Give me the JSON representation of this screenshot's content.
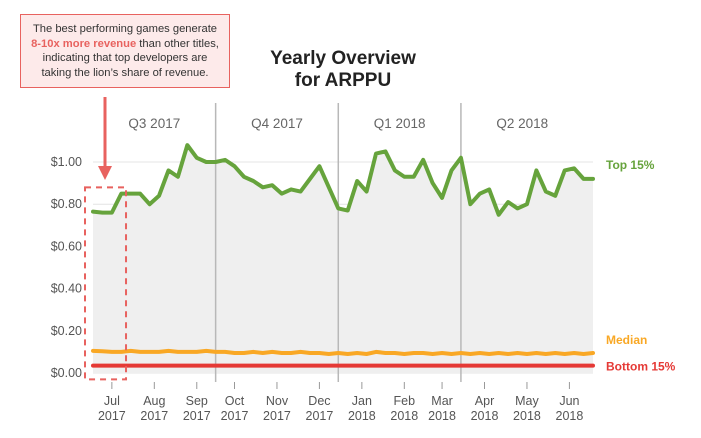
{
  "callout": {
    "text_before": "The best performing games generate",
    "highlight": "8-10x more revenue",
    "text_after": "than other titles, indicating that top developers are taking the lion’s share of revenue.",
    "border_color": "#e8625f",
    "highlight_color": "#e8625f"
  },
  "title": {
    "line1": "Yearly Overview",
    "line2": "for ARPPU"
  },
  "chart_data": {
    "type": "line",
    "title": "Yearly Overview for ARPPU",
    "xlabel": "",
    "ylabel": "",
    "ylim": [
      0,
      1.1
    ],
    "grid": true,
    "legend_placement": "right, end of lines",
    "y_ticks": [
      {
        "value": 0.0,
        "label": "$0.00"
      },
      {
        "value": 0.2,
        "label": "$0.20"
      },
      {
        "value": 0.4,
        "label": "$0.40"
      },
      {
        "value": 0.6,
        "label": "$0.60"
      },
      {
        "value": 0.8,
        "label": "$0.80"
      },
      {
        "value": 1.0,
        "label": "$1.00"
      }
    ],
    "quarters": [
      {
        "label": "Q3 2017",
        "start": 0,
        "end": 13
      },
      {
        "label": "Q4 2017",
        "start": 13,
        "end": 26
      },
      {
        "label": "Q1 2018",
        "start": 26,
        "end": 39
      },
      {
        "label": "Q2 2018",
        "start": 39,
        "end": 52
      }
    ],
    "month_ticks": [
      {
        "week": 2,
        "month": "Jul",
        "year": "2017"
      },
      {
        "week": 6.5,
        "month": "Aug",
        "year": "2017"
      },
      {
        "week": 11,
        "month": "Sep",
        "year": "2017"
      },
      {
        "week": 15,
        "month": "Oct",
        "year": "2017"
      },
      {
        "week": 19.5,
        "month": "Nov",
        "year": "2017"
      },
      {
        "week": 24,
        "month": "Dec",
        "year": "2017"
      },
      {
        "week": 28.5,
        "month": "Jan",
        "year": "2018"
      },
      {
        "week": 33,
        "month": "Feb",
        "year": "2018"
      },
      {
        "week": 37,
        "month": "Mar",
        "year": "2018"
      },
      {
        "week": 41.5,
        "month": "Apr",
        "year": "2018"
      },
      {
        "week": 46,
        "month": "May",
        "year": "2018"
      },
      {
        "week": 50.5,
        "month": "Jun",
        "year": "2018"
      }
    ],
    "x": [
      0,
      1,
      2,
      3,
      4,
      5,
      6,
      7,
      8,
      9,
      10,
      11,
      12,
      13,
      14,
      15,
      16,
      17,
      18,
      19,
      20,
      21,
      22,
      23,
      24,
      25,
      26,
      27,
      28,
      29,
      30,
      31,
      32,
      33,
      34,
      35,
      36,
      37,
      38,
      39,
      40,
      41,
      42,
      43,
      44,
      45,
      46,
      47,
      48,
      49,
      50,
      51,
      52,
      53
    ],
    "series": [
      {
        "name": "Top 15%",
        "color": "#66a33c",
        "values": [
          0.765,
          0.76,
          0.76,
          0.85,
          0.85,
          0.85,
          0.8,
          0.84,
          0.96,
          0.93,
          1.08,
          1.02,
          1.0,
          1.0,
          1.01,
          0.98,
          0.93,
          0.91,
          0.88,
          0.89,
          0.85,
          0.87,
          0.86,
          0.92,
          0.98,
          0.88,
          0.78,
          0.77,
          0.91,
          0.86,
          1.04,
          1.05,
          0.96,
          0.93,
          0.93,
          1.01,
          0.9,
          0.83,
          0.96,
          1.02,
          0.8,
          0.85,
          0.87,
          0.75,
          0.81,
          0.78,
          0.8,
          0.96,
          0.86,
          0.84,
          0.96,
          0.97,
          0.92,
          0.92
        ]
      },
      {
        "name": "Median",
        "color": "#f9a825",
        "values": [
          0.105,
          0.103,
          0.1,
          0.1,
          0.105,
          0.1,
          0.1,
          0.1,
          0.105,
          0.1,
          0.1,
          0.1,
          0.105,
          0.1,
          0.1,
          0.095,
          0.095,
          0.1,
          0.095,
          0.1,
          0.095,
          0.095,
          0.1,
          0.095,
          0.095,
          0.09,
          0.095,
          0.09,
          0.095,
          0.09,
          0.1,
          0.095,
          0.095,
          0.09,
          0.095,
          0.095,
          0.09,
          0.095,
          0.09,
          0.095,
          0.09,
          0.095,
          0.09,
          0.095,
          0.09,
          0.095,
          0.09,
          0.095,
          0.09,
          0.095,
          0.09,
          0.095,
          0.09,
          0.095
        ]
      },
      {
        "name": "Bottom 15%",
        "color": "#e53935",
        "values": [
          0.035,
          0.035,
          0.035,
          0.035,
          0.035,
          0.035,
          0.035,
          0.035,
          0.035,
          0.035,
          0.035,
          0.035,
          0.035,
          0.035,
          0.035,
          0.035,
          0.035,
          0.035,
          0.035,
          0.035,
          0.035,
          0.035,
          0.035,
          0.035,
          0.035,
          0.035,
          0.035,
          0.035,
          0.035,
          0.035,
          0.035,
          0.035,
          0.035,
          0.035,
          0.035,
          0.035,
          0.035,
          0.035,
          0.035,
          0.035,
          0.035,
          0.035,
          0.035,
          0.035,
          0.035,
          0.035,
          0.035,
          0.035,
          0.035,
          0.035,
          0.035,
          0.035,
          0.035,
          0.035
        ]
      }
    ],
    "annotation": {
      "type": "dashed-box-with-arrow",
      "x_range": [
        0,
        3.5
      ],
      "y_range": [
        -0.03,
        0.88
      ],
      "color": "#e8625f"
    }
  }
}
